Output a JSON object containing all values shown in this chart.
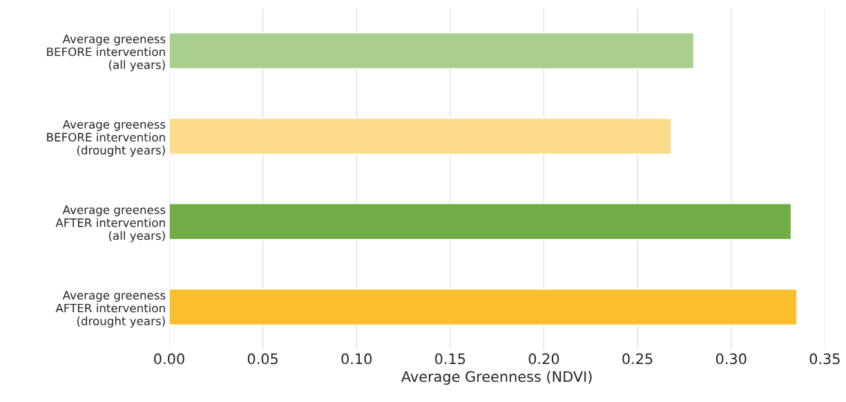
{
  "chart_data": {
    "type": "bar",
    "orientation": "horizontal",
    "xlabel": "Average Greenness (NDVI)",
    "categories": [
      "Average greeness\nBEFORE intervention\n(all years)",
      "Average greeness\nBEFORE intervention\n(drought years)",
      "Average greeness\nAFTER intervention\n(all years)",
      "Average greeness\nAFTER intervention\n(drought years)"
    ],
    "values": [
      0.28,
      0.268,
      0.332,
      0.335
    ],
    "colors": [
      "#a9cf8f",
      "#fcdc8a",
      "#70ad47",
      "#fbbf2d"
    ],
    "xlim": [
      0,
      0.35
    ],
    "xticks": [
      {
        "value": 0,
        "label": "0.00"
      },
      {
        "value": 0.05,
        "label": "0.05"
      },
      {
        "value": 0.1,
        "label": "0.10"
      },
      {
        "value": 0.15,
        "label": "0.15"
      },
      {
        "value": 0.2,
        "label": "0.20"
      },
      {
        "value": 0.25,
        "label": "0.25"
      },
      {
        "value": 0.3,
        "label": "0.30"
      },
      {
        "value": 0.35,
        "label": "0.35"
      }
    ],
    "grid": "x"
  }
}
